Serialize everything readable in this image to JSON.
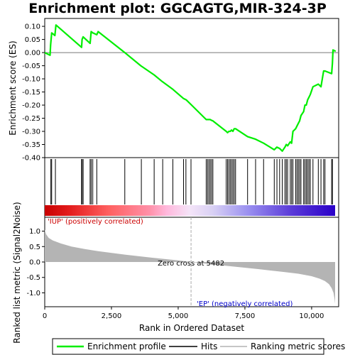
{
  "chart_data": {
    "type": "line",
    "title": "Enrichment plot: GGCAGTG,MIR-324-3P",
    "es_panel": {
      "ylabel": "Enrichment score (ES)",
      "ylim": [
        -0.4,
        0.13
      ],
      "yticks": [
        0.1,
        0.05,
        0.0,
        -0.05,
        -0.1,
        -0.15,
        -0.2,
        -0.25,
        -0.3,
        -0.35,
        -0.4
      ],
      "ytick_labels": [
        "0.10",
        "0.05",
        "0.00",
        "-0.05",
        "-0.10",
        "-0.15",
        "-0.20",
        "-0.25",
        "-0.30",
        "-0.35",
        "-0.40"
      ],
      "grid": false,
      "series": [
        {
          "name": "Enrichment profile",
          "color": "#00ee00",
          "x": [
            0,
            200,
            220,
            260,
            380,
            420,
            1380,
            1400,
            1440,
            1700,
            1740,
            1800,
            1950,
            2000,
            3000,
            3600,
            4100,
            4400,
            4800,
            5200,
            5300,
            5500,
            6050,
            6100,
            6150,
            6200,
            6250,
            6300,
            6800,
            6850,
            6900,
            6950,
            7000,
            7050,
            7100,
            7150,
            7600,
            7900,
            8200,
            8600,
            8700,
            8800,
            8900,
            9000,
            9050,
            9100,
            9200,
            9250,
            9300,
            9400,
            9450,
            9500,
            9550,
            9600,
            9700,
            9750,
            9800,
            9850,
            9900,
            9950,
            10050,
            10250,
            10350,
            10450,
            10500,
            10750,
            10780,
            10800,
            10900
          ],
          "values": [
            0.0,
            -0.01,
            0.03,
            0.075,
            0.065,
            0.105,
            0.02,
            0.05,
            0.06,
            0.035,
            0.08,
            0.075,
            0.068,
            0.08,
            0.0,
            -0.05,
            -0.085,
            -0.11,
            -0.14,
            -0.175,
            -0.18,
            -0.2,
            -0.255,
            -0.255,
            -0.255,
            -0.255,
            -0.258,
            -0.26,
            -0.3,
            -0.305,
            -0.3,
            -0.3,
            -0.295,
            -0.3,
            -0.29,
            -0.29,
            -0.32,
            -0.33,
            -0.345,
            -0.37,
            -0.36,
            -0.365,
            -0.375,
            -0.36,
            -0.35,
            -0.355,
            -0.34,
            -0.345,
            -0.3,
            -0.29,
            -0.28,
            -0.27,
            -0.26,
            -0.24,
            -0.225,
            -0.2,
            -0.2,
            -0.18,
            -0.17,
            -0.16,
            -0.13,
            -0.12,
            -0.13,
            -0.07,
            -0.07,
            -0.08,
            -0.04,
            0.01,
            0.005
          ]
        }
      ]
    },
    "hits_panel": {
      "legend_name": "Hits",
      "hits": [
        230,
        260,
        400,
        1380,
        1400,
        1440,
        1700,
        1740,
        1800,
        1950,
        3000,
        3620,
        4100,
        4420,
        4800,
        5200,
        5290,
        5480,
        6050,
        6100,
        6150,
        6200,
        6250,
        6300,
        6800,
        6850,
        6900,
        6950,
        7000,
        7050,
        7100,
        7150,
        7600,
        7900,
        8200,
        8600,
        8700,
        8800,
        8900,
        9000,
        9050,
        9100,
        9200,
        9250,
        9300,
        9400,
        9450,
        9500,
        9550,
        9600,
        9700,
        9750,
        9800,
        9850,
        9900,
        9950,
        10050,
        10250,
        10350,
        10450,
        10500,
        10750,
        10780
      ],
      "bar_gradient_stops": [
        {
          "pos": 0.0,
          "color": "#c80000"
        },
        {
          "pos": 0.08,
          "color": "#e21a1a"
        },
        {
          "pos": 0.22,
          "color": "#ff6060"
        },
        {
          "pos": 0.36,
          "color": "#ff90a8"
        },
        {
          "pos": 0.42,
          "color": "#ffb8dc"
        },
        {
          "pos": 0.5,
          "color": "#f4e4f8"
        },
        {
          "pos": 0.58,
          "color": "#d8d0f4"
        },
        {
          "pos": 0.7,
          "color": "#9a90f0"
        },
        {
          "pos": 0.85,
          "color": "#5a3ad8"
        },
        {
          "pos": 1.0,
          "color": "#2a00c8"
        }
      ]
    },
    "metric_panel": {
      "legend_name": "Ranking metric scores",
      "ylabel": "Ranked list metric (Signal2Noise)",
      "xlabel": "Rank in Ordered Dataset",
      "ylim": [
        -1.45,
        1.45
      ],
      "yticks": [
        1.0,
        0.5,
        0.0,
        -0.5,
        -1.0
      ],
      "ytick_labels": [
        "1.0",
        "0.5",
        "0.0",
        "-0.5",
        "-1.0"
      ],
      "xlim": [
        0,
        11300
      ],
      "xticks": [
        0,
        2500,
        5000,
        7500,
        10000
      ],
      "xtick_labels": [
        "0",
        "2,500",
        "5,000",
        "7,500",
        "10,000"
      ],
      "fill_color": "#b4b4b4",
      "x": [
        0,
        50,
        150,
        300,
        600,
        1000,
        1500,
        2000,
        3000,
        4000,
        5000,
        5482,
        6000,
        7000,
        8000,
        9000,
        9500,
        10000,
        10300,
        10500,
        10650,
        10750,
        10820,
        10860,
        10880
      ],
      "values": [
        1.05,
        0.9,
        0.78,
        0.7,
        0.6,
        0.5,
        0.42,
        0.35,
        0.24,
        0.14,
        0.05,
        0.0,
        -0.05,
        -0.14,
        -0.23,
        -0.33,
        -0.38,
        -0.46,
        -0.54,
        -0.62,
        -0.72,
        -0.85,
        -1.0,
        -1.2,
        -1.35
      ],
      "zero_cross_rank": 5482,
      "zero_cross_label": "Zero cross at 5482",
      "pos_label": "'IUP' (positively correlated)",
      "pos_color": "#cc0000",
      "neg_label": "'EP' (negatively correlated)",
      "neg_color": "#0000cc"
    }
  }
}
